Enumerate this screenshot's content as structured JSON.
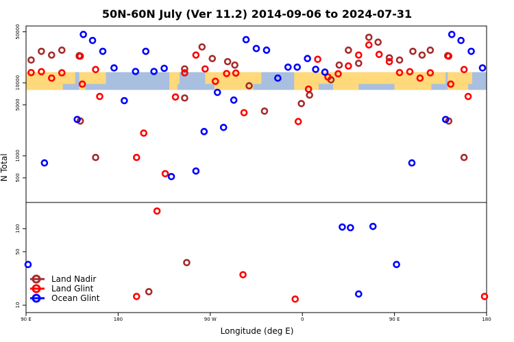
{
  "chart_data": {
    "type": "scatter",
    "title": "50N-60N July (Ver 11.2)   2014-09-06 to 2024-07-31",
    "xlabel": "Longitude (deg E)",
    "ylabel": "N Total",
    "x_ticks": [
      {
        "value": 0,
        "label": "90 E"
      },
      {
        "value": 90,
        "label": "180"
      },
      {
        "value": 180,
        "label": "90 W"
      },
      {
        "value": 270,
        "label": "0"
      },
      {
        "value": 360,
        "label": "90 E"
      },
      {
        "value": 450,
        "label": "180"
      }
    ],
    "xlim": [
      0,
      450
    ],
    "land_band": {
      "range_top": [
        11000,
        14000
      ],
      "range_bottom": [
        8000,
        11000
      ],
      "land_color": "#FFD97A",
      "ocean_color": "#A8BFDF"
    },
    "panels": [
      {
        "name": "upper",
        "yscale": "log",
        "ylim": [
          230,
          60000
        ],
        "y_ticks": [
          {
            "value": 500,
            "label": "500"
          },
          {
            "value": 1000,
            "label": "1000"
          },
          {
            "value": 5000,
            "label": "5000"
          },
          {
            "value": 10000,
            "label": "10000"
          },
          {
            "value": 50000,
            "label": "50000"
          }
        ]
      },
      {
        "name": "lower",
        "yscale": "log",
        "ylim": [
          8,
          220
        ],
        "y_ticks": [
          {
            "value": 10,
            "label": "10"
          },
          {
            "value": 50,
            "label": "50"
          },
          {
            "value": 100,
            "label": "100"
          }
        ]
      }
    ],
    "series": [
      {
        "name": "Land Nadir",
        "color": "#A52A2A",
        "points": [
          {
            "x": 5,
            "y": 20500,
            "panel": 0
          },
          {
            "x": 15,
            "y": 27000,
            "panel": 0
          },
          {
            "x": 25,
            "y": 24000,
            "panel": 0
          },
          {
            "x": 35,
            "y": 28000,
            "panel": 0
          },
          {
            "x": 52,
            "y": 23500,
            "panel": 0
          },
          {
            "x": 52,
            "y": 23200,
            "panel": 0
          },
          {
            "x": 53,
            "y": 3000,
            "panel": 0
          },
          {
            "x": 68,
            "y": 950,
            "panel": 0
          },
          {
            "x": 155,
            "y": 15500,
            "panel": 0
          },
          {
            "x": 155,
            "y": 6200,
            "panel": 0
          },
          {
            "x": 157,
            "y": 36,
            "panel": 1
          },
          {
            "x": 172,
            "y": 31000,
            "panel": 0
          },
          {
            "x": 182,
            "y": 21500,
            "panel": 0
          },
          {
            "x": 197,
            "y": 19500,
            "panel": 0
          },
          {
            "x": 204,
            "y": 17500,
            "panel": 0
          },
          {
            "x": 218,
            "y": 9100,
            "panel": 0
          },
          {
            "x": 233,
            "y": 4100,
            "panel": 0
          },
          {
            "x": 269,
            "y": 5200,
            "panel": 0
          },
          {
            "x": 277,
            "y": 6800,
            "panel": 0
          },
          {
            "x": 298,
            "y": 11000,
            "panel": 0
          },
          {
            "x": 306,
            "y": 17500,
            "panel": 0
          },
          {
            "x": 315,
            "y": 28000,
            "panel": 0
          },
          {
            "x": 325,
            "y": 18500,
            "panel": 0
          },
          {
            "x": 335,
            "y": 42000,
            "panel": 0
          },
          {
            "x": 344,
            "y": 36000,
            "panel": 0
          },
          {
            "x": 355,
            "y": 22000,
            "panel": 0
          },
          {
            "x": 365,
            "y": 20500,
            "panel": 0
          },
          {
            "x": 378,
            "y": 27000,
            "panel": 0
          },
          {
            "x": 387,
            "y": 24000,
            "panel": 0
          },
          {
            "x": 395,
            "y": 28000,
            "panel": 0
          },
          {
            "x": 412,
            "y": 23500,
            "panel": 0
          },
          {
            "x": 413,
            "y": 3000,
            "panel": 0
          },
          {
            "x": 428,
            "y": 950,
            "panel": 0
          },
          {
            "x": 120,
            "y": 15,
            "panel": 1
          }
        ]
      },
      {
        "name": "Land Glint",
        "color": "#FF0000",
        "points": [
          {
            "x": 5,
            "y": 13800,
            "panel": 0
          },
          {
            "x": 15,
            "y": 14200,
            "panel": 0
          },
          {
            "x": 25,
            "y": 11600,
            "panel": 0
          },
          {
            "x": 35,
            "y": 13700,
            "panel": 0
          },
          {
            "x": 53,
            "y": 23200,
            "panel": 0
          },
          {
            "x": 55,
            "y": 9600,
            "panel": 0
          },
          {
            "x": 68,
            "y": 15200,
            "panel": 0
          },
          {
            "x": 72,
            "y": 6500,
            "panel": 0
          },
          {
            "x": 108,
            "y": 13,
            "panel": 1
          },
          {
            "x": 108,
            "y": 950,
            "panel": 1,
            "panelOverride": 0
          },
          {
            "x": 115,
            "y": 2050,
            "panel": 0
          },
          {
            "x": 128,
            "y": 170,
            "panel": 1
          },
          {
            "x": 136,
            "y": 570,
            "panel": 0
          },
          {
            "x": 146,
            "y": 6400,
            "panel": 0
          },
          {
            "x": 155,
            "y": 13700,
            "panel": 0
          },
          {
            "x": 166,
            "y": 24000,
            "panel": 0
          },
          {
            "x": 175,
            "y": 15500,
            "panel": 0
          },
          {
            "x": 185,
            "y": 10500,
            "panel": 0
          },
          {
            "x": 196,
            "y": 13400,
            "panel": 0
          },
          {
            "x": 205,
            "y": 13600,
            "panel": 0
          },
          {
            "x": 212,
            "y": 25,
            "panel": 1
          },
          {
            "x": 213,
            "y": 3900,
            "panel": 0
          },
          {
            "x": 263,
            "y": 12,
            "panel": 1
          },
          {
            "x": 266,
            "y": 2950,
            "panel": 0
          },
          {
            "x": 276,
            "y": 8200,
            "panel": 0
          },
          {
            "x": 285,
            "y": 21000,
            "panel": 0
          },
          {
            "x": 295,
            "y": 12000,
            "panel": 0
          },
          {
            "x": 305,
            "y": 13300,
            "panel": 0
          },
          {
            "x": 315,
            "y": 17000,
            "panel": 0
          },
          {
            "x": 325,
            "y": 24000,
            "panel": 0
          },
          {
            "x": 335,
            "y": 33000,
            "panel": 0
          },
          {
            "x": 345,
            "y": 24500,
            "panel": 0
          },
          {
            "x": 355,
            "y": 19500,
            "panel": 0
          },
          {
            "x": 365,
            "y": 13800,
            "panel": 0
          },
          {
            "x": 375,
            "y": 14200,
            "panel": 0
          },
          {
            "x": 385,
            "y": 11600,
            "panel": 0
          },
          {
            "x": 395,
            "y": 13700,
            "panel": 0
          },
          {
            "x": 413,
            "y": 23200,
            "panel": 0
          },
          {
            "x": 415,
            "y": 9600,
            "panel": 0
          },
          {
            "x": 428,
            "y": 15200,
            "panel": 0
          },
          {
            "x": 432,
            "y": 6500,
            "panel": 0
          },
          {
            "x": 448,
            "y": 13,
            "panel": 1
          }
        ]
      },
      {
        "name": "Ocean Glint",
        "color": "#0000FF",
        "points": [
          {
            "x": 2,
            "y": 34,
            "panel": 1
          },
          {
            "x": 18,
            "y": 800,
            "panel": 0
          },
          {
            "x": 50,
            "y": 3150,
            "panel": 0
          },
          {
            "x": 56,
            "y": 46000,
            "panel": 0
          },
          {
            "x": 65,
            "y": 38000,
            "panel": 0
          },
          {
            "x": 75,
            "y": 27000,
            "panel": 0
          },
          {
            "x": 86,
            "y": 16000,
            "panel": 0
          },
          {
            "x": 96,
            "y": 5700,
            "panel": 0
          },
          {
            "x": 107,
            "y": 14300,
            "panel": 0
          },
          {
            "x": 117,
            "y": 27000,
            "panel": 0
          },
          {
            "x": 125,
            "y": 14300,
            "panel": 0
          },
          {
            "x": 135,
            "y": 15800,
            "panel": 0
          },
          {
            "x": 142,
            "y": 520,
            "panel": 0
          },
          {
            "x": 166,
            "y": 620,
            "panel": 0
          },
          {
            "x": 174,
            "y": 2150,
            "panel": 0
          },
          {
            "x": 187,
            "y": 7400,
            "panel": 0
          },
          {
            "x": 193,
            "y": 2450,
            "panel": 0
          },
          {
            "x": 203,
            "y": 5800,
            "panel": 0
          },
          {
            "x": 215,
            "y": 39000,
            "panel": 0
          },
          {
            "x": 225,
            "y": 29500,
            "panel": 0
          },
          {
            "x": 235,
            "y": 28000,
            "panel": 0
          },
          {
            "x": 246,
            "y": 11600,
            "panel": 0
          },
          {
            "x": 256,
            "y": 16400,
            "panel": 0
          },
          {
            "x": 265,
            "y": 16400,
            "panel": 0
          },
          {
            "x": 275,
            "y": 21500,
            "panel": 0
          },
          {
            "x": 283,
            "y": 15300,
            "panel": 0
          },
          {
            "x": 292,
            "y": 14000,
            "panel": 0
          },
          {
            "x": 309,
            "y": 105,
            "panel": 1
          },
          {
            "x": 317,
            "y": 103,
            "panel": 1
          },
          {
            "x": 325,
            "y": 14,
            "panel": 1
          },
          {
            "x": 339,
            "y": 107,
            "panel": 1
          },
          {
            "x": 362,
            "y": 34,
            "panel": 1
          },
          {
            "x": 377,
            "y": 800,
            "panel": 0
          },
          {
            "x": 410,
            "y": 3150,
            "panel": 0
          },
          {
            "x": 416,
            "y": 46000,
            "panel": 0
          },
          {
            "x": 425,
            "y": 38000,
            "panel": 0
          },
          {
            "x": 435,
            "y": 27000,
            "panel": 0
          },
          {
            "x": 446,
            "y": 16000,
            "panel": 0
          }
        ]
      }
    ],
    "legend": {
      "position": "bottom-left",
      "entries": [
        "Land Nadir",
        "Land Glint",
        "Ocean Glint"
      ]
    }
  }
}
